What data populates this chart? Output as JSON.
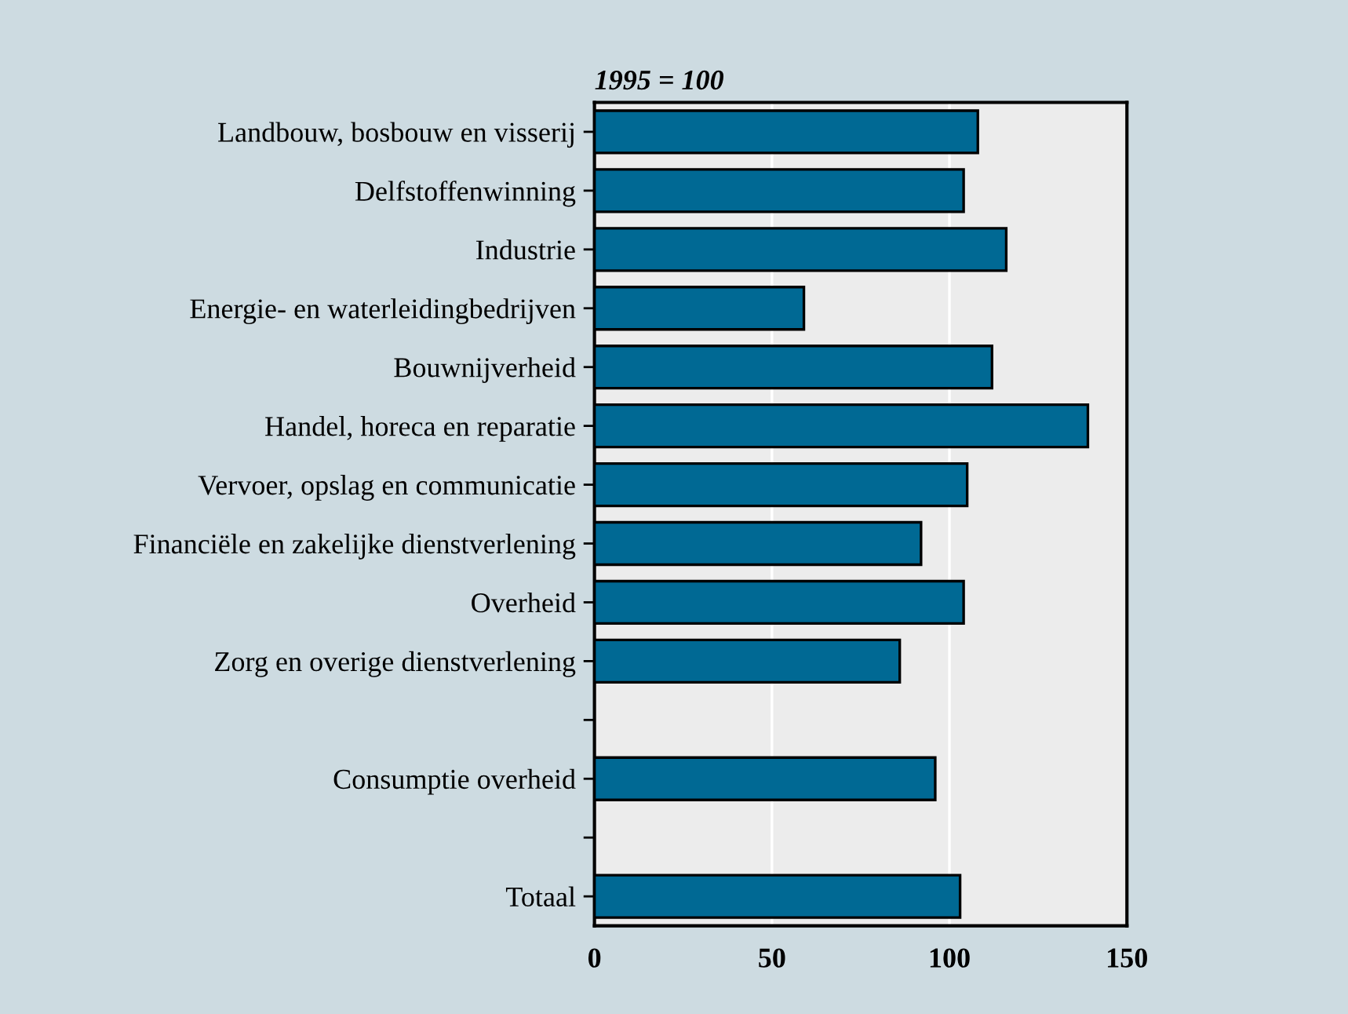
{
  "chart_data": {
    "type": "bar",
    "orientation": "horizontal",
    "title": "1995 = 100",
    "categories": [
      "Landbouw, bosbouw en visserij",
      "Delfstoffenwinning",
      "Industrie",
      "Energie- en waterleidingbedrijven",
      "Bouwnijverheid",
      "Handel, horeca en reparatie",
      "Vervoer, opslag en communicatie",
      "Financiële en zakelijke dienstverlening",
      "Overheid",
      "Zorg en overige dienstverlening",
      null,
      "Consumptie overheid",
      null,
      "Totaal"
    ],
    "values": [
      108,
      104,
      116,
      59,
      112,
      139,
      105,
      92,
      104,
      86,
      null,
      96,
      null,
      103
    ],
    "color": "#006994",
    "xlim": [
      0,
      150
    ],
    "xticks": [
      0,
      50,
      100,
      150
    ],
    "grid": "x"
  }
}
